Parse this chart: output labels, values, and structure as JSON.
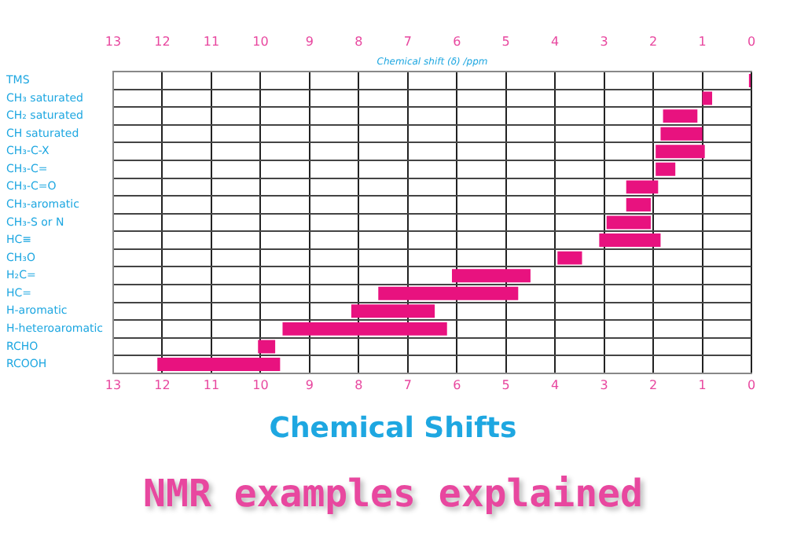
{
  "chart_data": {
    "type": "bar",
    "orientation": "horizontal",
    "title": "Chemical Shifts",
    "subtitle": "NMR examples explained",
    "xlabel": "Chemical shift (δ) /ppm",
    "categories": [
      "TMS",
      "CH₃ saturated",
      "CH₂ saturated",
      "CH saturated",
      "CH₃-C-X",
      "CH₃-C=",
      "CH₃-C=O",
      "CH₃-aromatic",
      "CH₃-S or N",
      "HC≡",
      "CH₃O",
      "H₂C=",
      "HC=",
      "H-aromatic",
      "H-heteroaromatic",
      "RCHO",
      "RCOOH"
    ],
    "base": [
      0,
      0.8,
      1.1,
      1.0,
      0.95,
      1.55,
      1.9,
      2.05,
      2.05,
      1.85,
      3.45,
      4.5,
      4.75,
      6.45,
      6.2,
      9.7,
      9.6
    ],
    "values": [
      0.05,
      0.2,
      0.7,
      0.85,
      1.0,
      0.4,
      0.65,
      0.5,
      0.9,
      1.25,
      0.5,
      1.6,
      2.85,
      1.7,
      3.35,
      0.35,
      2.5
    ],
    "color": "#e8127f",
    "xlim": [
      13,
      0
    ],
    "xticks": [
      13,
      12,
      11,
      10,
      9,
      8,
      7,
      6,
      5,
      4,
      3,
      2,
      1,
      0
    ],
    "x2lim": [
      13,
      0
    ],
    "x2ticks": [
      13,
      12,
      11,
      10,
      9,
      8,
      7,
      6,
      5,
      4,
      3,
      2,
      1,
      0
    ],
    "grid": true,
    "legend": false
  }
}
